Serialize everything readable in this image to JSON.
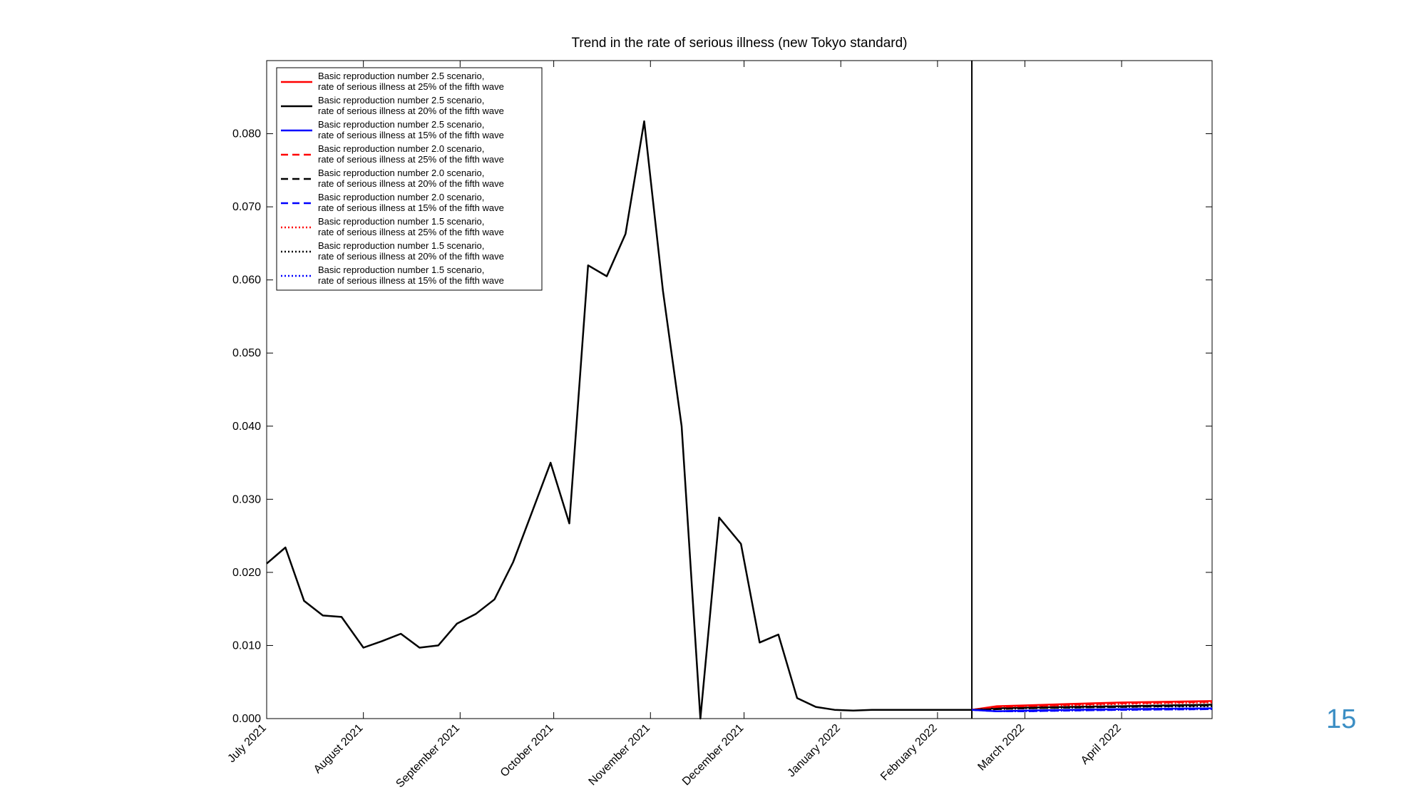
{
  "page_number": "15",
  "chart_data": {
    "type": "line",
    "title": "Trend in the rate of serious illness (new Tokyo standard)",
    "xlabel": "",
    "ylabel": "",
    "x_ticks": [
      {
        "label": "July 2021",
        "date": "2021-07-01"
      },
      {
        "label": "August 2021",
        "date": "2021-08-01"
      },
      {
        "label": "September 2021",
        "date": "2021-09-01"
      },
      {
        "label": "October 2021",
        "date": "2021-10-01"
      },
      {
        "label": "November 2021",
        "date": "2021-11-01"
      },
      {
        "label": "December 2021",
        "date": "2021-12-01"
      },
      {
        "label": "January 2022",
        "date": "2022-01-01"
      },
      {
        "label": "February 2022",
        "date": "2022-02-01"
      },
      {
        "label": "March 2022",
        "date": "2022-03-01"
      },
      {
        "label": "April 2022",
        "date": "2022-04-01"
      }
    ],
    "xlim": [
      "2021-07-01",
      "2022-04-30"
    ],
    "ylim": [
      0,
      0.09
    ],
    "y_ticks": [
      "0.000",
      "0.010",
      "0.020",
      "0.030",
      "0.040",
      "0.050",
      "0.060",
      "0.070",
      "0.080"
    ],
    "vertical_line": {
      "date": "2022-02-12",
      "color": "#000000"
    },
    "grid": false,
    "legend_position": "top-left",
    "observed": {
      "color": "#000000",
      "x": [
        "2021-07-01",
        "2021-07-07",
        "2021-07-13",
        "2021-07-19",
        "2021-07-25",
        "2021-08-01",
        "2021-08-07",
        "2021-08-13",
        "2021-08-19",
        "2021-08-25",
        "2021-08-31",
        "2021-09-06",
        "2021-09-12",
        "2021-09-18",
        "2021-09-24",
        "2021-09-30",
        "2021-10-06",
        "2021-10-12",
        "2021-10-18",
        "2021-10-24",
        "2021-10-30",
        "2021-11-05",
        "2021-11-11",
        "2021-11-17",
        "2021-11-23",
        "2021-11-30",
        "2021-12-06",
        "2021-12-12",
        "2021-12-18",
        "2021-12-24",
        "2021-12-30",
        "2022-01-05",
        "2022-01-11",
        "2022-01-17",
        "2022-01-23",
        "2022-01-29",
        "2022-02-04",
        "2022-02-12"
      ],
      "y": [
        0.0212,
        0.0234,
        0.0161,
        0.0141,
        0.0139,
        0.0097,
        0.0106,
        0.0116,
        0.0097,
        0.01,
        0.013,
        0.0143,
        0.0163,
        0.0214,
        0.0282,
        0.035,
        0.0267,
        0.062,
        0.0605,
        0.0663,
        0.0817,
        0.0585,
        0.04,
        0.0,
        0.0275,
        0.0239,
        0.0104,
        0.0115,
        0.0028,
        0.0016,
        0.0012,
        0.0011,
        0.0012,
        0.0012,
        0.0012,
        0.0012,
        0.0012,
        0.0012
      ]
    },
    "forecast_x": [
      "2022-02-12",
      "2022-02-20",
      "2022-03-01",
      "2022-03-15",
      "2022-04-01",
      "2022-04-30"
    ],
    "series": [
      {
        "name": "Basic reproduction number 2.5 scenario,\nrate of serious illness at 25% of the fifth wave",
        "color": "#ff0000",
        "dash": "solid",
        "values": [
          0.0012,
          0.0017,
          0.0018,
          0.002,
          0.0022,
          0.0024
        ]
      },
      {
        "name": "Basic reproduction number 2.5 scenario,\nrate of serious illness at 20% of the fifth wave",
        "color": "#000000",
        "dash": "solid",
        "values": [
          0.0012,
          0.0014,
          0.0015,
          0.0016,
          0.0017,
          0.0019
        ]
      },
      {
        "name": "Basic reproduction number 2.5 scenario,\nrate of serious illness at 15% of the fifth wave",
        "color": "#0000ff",
        "dash": "solid",
        "values": [
          0.0012,
          0.001,
          0.0011,
          0.0012,
          0.0013,
          0.0014
        ]
      },
      {
        "name": "Basic reproduction number 2.0 scenario,\nrate of serious illness at 25% of the fifth wave",
        "color": "#ff0000",
        "dash": "dashed",
        "values": [
          0.0012,
          0.0016,
          0.0017,
          0.0019,
          0.0021,
          0.0023
        ]
      },
      {
        "name": "Basic reproduction number 2.0 scenario,\nrate of serious illness at 20% of the fifth wave",
        "color": "#000000",
        "dash": "dashed",
        "values": [
          0.0012,
          0.0013,
          0.0014,
          0.0015,
          0.0016,
          0.0018
        ]
      },
      {
        "name": "Basic reproduction number 2.0 scenario,\nrate of serious illness at 15% of the fifth wave",
        "color": "#0000ff",
        "dash": "dashed",
        "values": [
          0.0012,
          0.001,
          0.001,
          0.0011,
          0.0012,
          0.0013
        ]
      },
      {
        "name": "Basic reproduction number 1.5 scenario,\nrate of serious illness at 25% of the fifth wave",
        "color": "#ff0000",
        "dash": "dotted",
        "values": [
          0.0012,
          0.0016,
          0.0017,
          0.0018,
          0.002,
          0.0022
        ]
      },
      {
        "name": "Basic reproduction number 1.5 scenario,\nrate of serious illness at 20% of the fifth wave",
        "color": "#000000",
        "dash": "dotted",
        "values": [
          0.0012,
          0.0013,
          0.0014,
          0.0015,
          0.0016,
          0.0017
        ]
      },
      {
        "name": "Basic reproduction number 1.5 scenario,\nrate of serious illness at 15% of the fifth wave",
        "color": "#0000ff",
        "dash": "dotted",
        "values": [
          0.0012,
          0.001,
          0.001,
          0.0011,
          0.0012,
          0.0013
        ]
      }
    ]
  }
}
